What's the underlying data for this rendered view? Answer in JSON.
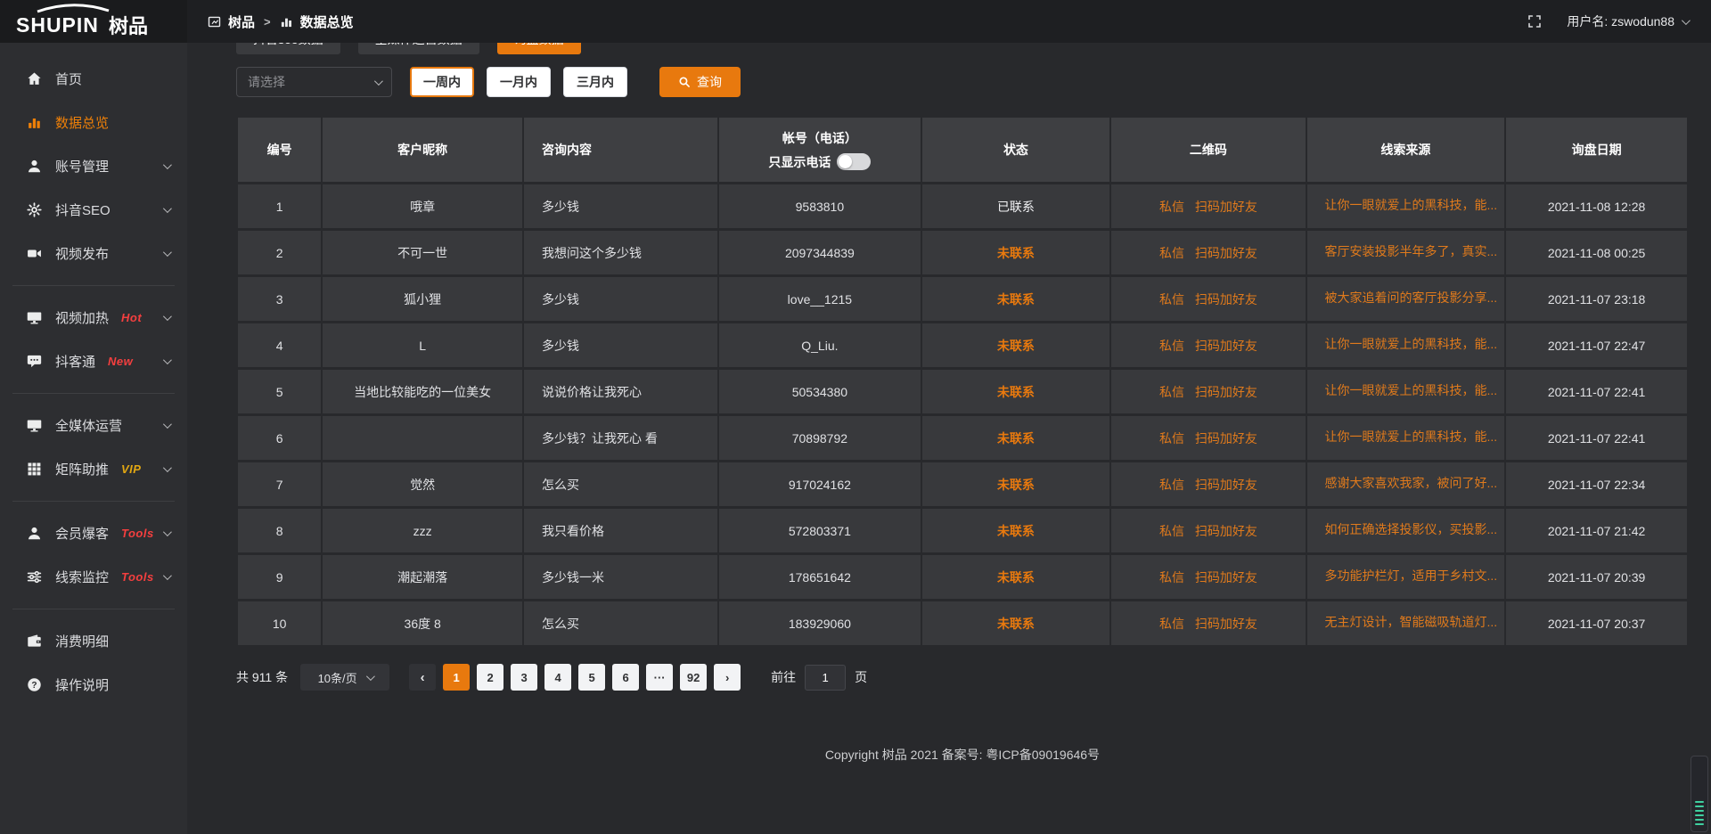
{
  "app": {
    "logo_text": "SHUPIN",
    "logo_cjk": "树品"
  },
  "header": {
    "breadcrumb_home": "树品",
    "breadcrumb_current": "数据总览",
    "separator": ">",
    "username": "用户名: zswodun88"
  },
  "sidebar": {
    "items": [
      {
        "label": "首页",
        "icon": "home-icon"
      },
      {
        "label": "数据总览",
        "icon": "bar-chart-icon",
        "active": true
      },
      {
        "label": "账号管理",
        "icon": "user-icon",
        "chevron": true
      },
      {
        "label": "抖音SEO",
        "icon": "gear-icon",
        "chevron": true
      },
      {
        "label": "视频发布",
        "icon": "video-camera-icon",
        "chevron": true,
        "divider_after": true
      },
      {
        "label": "视频加热",
        "icon": "monitor-icon",
        "badge": "Hot",
        "badge_color": "#f53f3f",
        "chevron": true
      },
      {
        "label": "抖客通",
        "icon": "comment-icon",
        "badge": "New",
        "badge_color": "#f53f3f",
        "chevron": true,
        "divider_after": true
      },
      {
        "label": "全媒体运营",
        "icon": "monitor-icon",
        "chevron": true
      },
      {
        "label": "矩阵助推",
        "icon": "grid-icon",
        "badge": "VIP",
        "badge_color": "#e2a712",
        "chevron": true,
        "divider_after": true
      },
      {
        "label": "会员爆客",
        "icon": "user-icon",
        "badge": "Tools",
        "badge_color": "#f53f3f",
        "chevron": true
      },
      {
        "label": "线索监控",
        "icon": "sliders-icon",
        "badge": "Tools",
        "badge_color": "#f53f3f",
        "chevron": true,
        "divider_after": true
      },
      {
        "label": "消费明细",
        "icon": "wallet-icon"
      },
      {
        "label": "操作说明",
        "icon": "question-icon"
      }
    ]
  },
  "tabs": [
    {
      "label": "抖音seo数据"
    },
    {
      "label": "全媒体运营数据"
    },
    {
      "label": "询盘数据",
      "active": true
    }
  ],
  "filters": {
    "select_placeholder": "请选择",
    "periods": [
      {
        "label": "一周内",
        "active": true
      },
      {
        "label": "一月内"
      },
      {
        "label": "三月内"
      }
    ],
    "search_label": "查询"
  },
  "table": {
    "columns": [
      "编号",
      "客户昵称",
      "咨询内容",
      "帐号（电话）",
      "状态",
      "二维码",
      "线索来源",
      "询盘日期"
    ],
    "phone_toggle_label": "只显示电话",
    "qr_links": [
      "私信",
      "扫码加好友"
    ],
    "rows": [
      {
        "num": "1",
        "nickname": "哦章",
        "content": "多少钱",
        "account": "9583810",
        "status": "已联系",
        "contacted": true,
        "source": "让你一眼就爱上的黑科技，能...",
        "date": "2021-11-08 12:28"
      },
      {
        "num": "2",
        "nickname": "不可一世",
        "content": "我想问这个多少钱",
        "account": "2097344839",
        "status": "未联系",
        "contacted": false,
        "source": "客厅安装投影半年多了，真实...",
        "date": "2021-11-08 00:25"
      },
      {
        "num": "3",
        "nickname": "狐小狸",
        "content": "多少钱",
        "account": "love__1215",
        "status": "未联系",
        "contacted": false,
        "source": "被大家追着问的客厅投影分享...",
        "date": "2021-11-07 23:18"
      },
      {
        "num": "4",
        "nickname": "L",
        "content": "多少钱",
        "account": "Q_Liu.",
        "status": "未联系",
        "contacted": false,
        "source": "让你一眼就爱上的黑科技，能...",
        "date": "2021-11-07 22:47"
      },
      {
        "num": "5",
        "nickname": "当地比较能吃的一位美女",
        "content": "说说价格让我死心",
        "account": "50534380",
        "status": "未联系",
        "contacted": false,
        "source": "让你一眼就爱上的黑科技，能...",
        "date": "2021-11-07 22:41"
      },
      {
        "num": "6",
        "nickname": "",
        "content": "多少钱？让我死心 看",
        "account": "70898792",
        "status": "未联系",
        "contacted": false,
        "source": "让你一眼就爱上的黑科技，能...",
        "date": "2021-11-07 22:41"
      },
      {
        "num": "7",
        "nickname": "觉然",
        "content": "怎么买",
        "account": "917024162",
        "status": "未联系",
        "contacted": false,
        "source": "感谢大家喜欢我家，被问了好...",
        "date": "2021-11-07 22:34"
      },
      {
        "num": "8",
        "nickname": "zzz",
        "content": "我只看价格",
        "account": "572803371",
        "status": "未联系",
        "contacted": false,
        "source": "如何正确选择投影仪，买投影...",
        "date": "2021-11-07 21:42"
      },
      {
        "num": "9",
        "nickname": "潮起潮落",
        "content": "多少钱一米",
        "account": "178651642",
        "status": "未联系",
        "contacted": false,
        "source": "多功能护栏灯，适用于乡村文...",
        "date": "2021-11-07 20:39"
      },
      {
        "num": "10",
        "nickname": "36度 8",
        "content": "怎么买",
        "account": "183929060",
        "status": "未联系",
        "contacted": false,
        "source": "无主灯设计，智能磁吸轨道灯...",
        "date": "2021-11-07 20:37"
      }
    ]
  },
  "pagination": {
    "total_label": "共 911 条",
    "per_page_label": "10条/页",
    "prev_icon": "‹",
    "next_icon": "›",
    "pages": [
      "1",
      "2",
      "3",
      "4",
      "5",
      "6",
      "···",
      "92"
    ],
    "active_page": "1",
    "goto_label": "前往",
    "goto_value": "1",
    "goto_unit_label": "页"
  },
  "footer": {
    "copyright": "Copyright 树品 2021 备案号: 粤ICP备09019646号"
  },
  "colors": {
    "accent": "#e8790e",
    "link": "#e07a1c",
    "hot_badge": "#f53f3f",
    "vip_badge": "#e2a712"
  }
}
